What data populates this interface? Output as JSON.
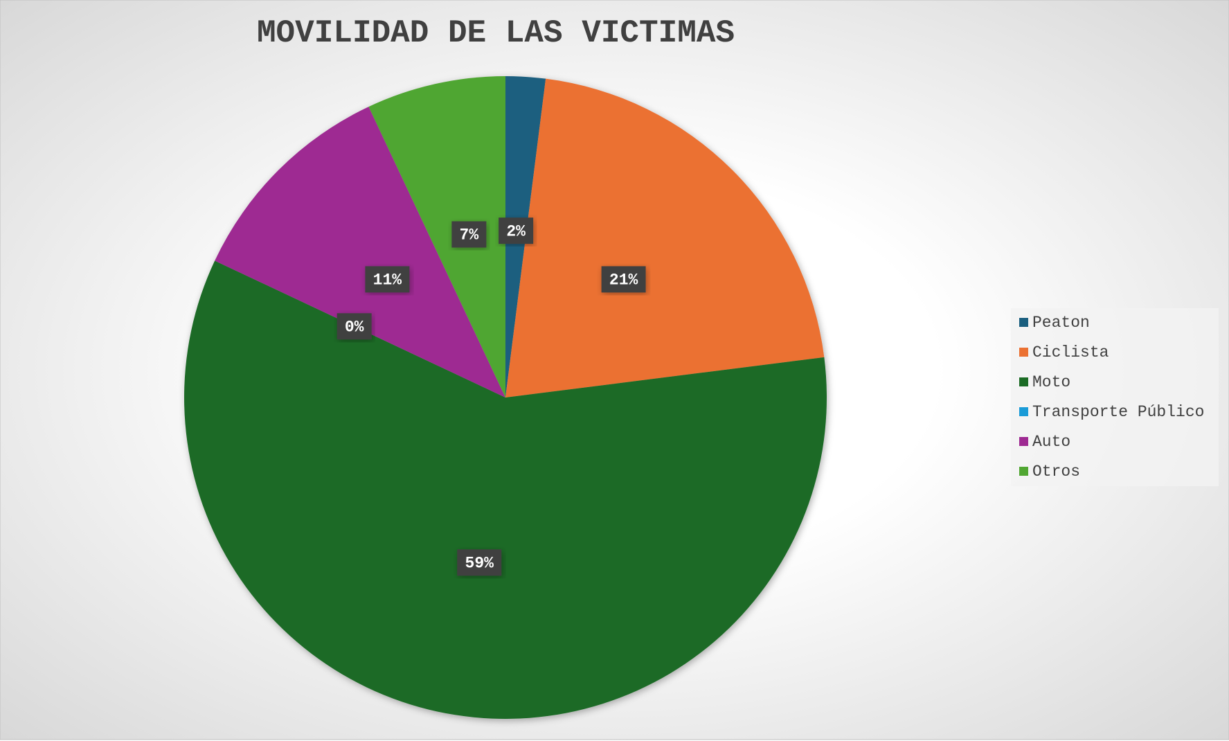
{
  "chart_data": {
    "type": "pie",
    "title": "MOVILIDAD DE LAS VICTIMAS",
    "categories": [
      "Peaton",
      "Ciclista",
      "Moto",
      "Transporte Público",
      "Auto",
      "Otros"
    ],
    "values": [
      2,
      21,
      59,
      0,
      11,
      7
    ],
    "value_labels": [
      "2%",
      "21%",
      "59%",
      "0%",
      "11%",
      "7%"
    ],
    "colors": [
      "#1a5f7f",
      "#eb7132",
      "#1b6b25",
      "#1a9bd7",
      "#9e2a92",
      "#50a632"
    ],
    "legend": "right"
  }
}
